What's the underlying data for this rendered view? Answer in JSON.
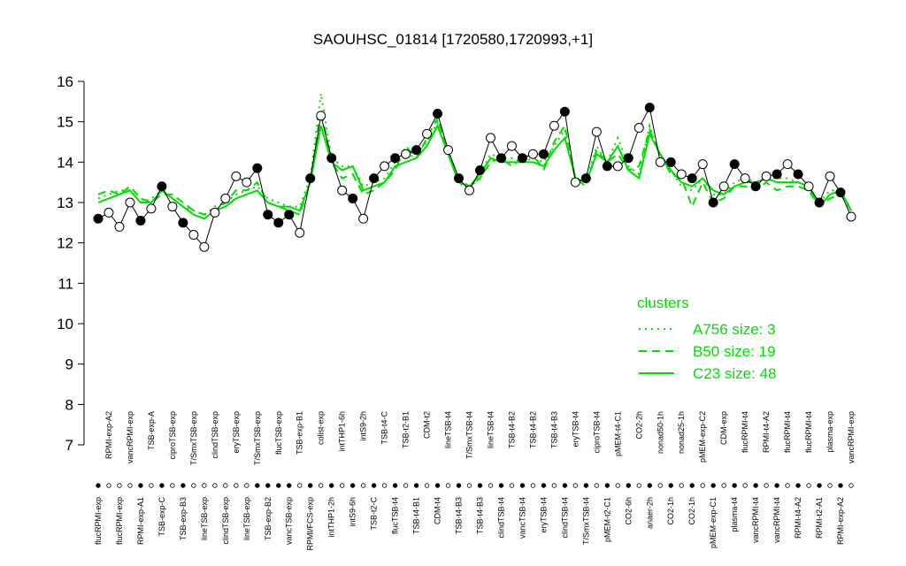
{
  "chart_data": {
    "type": "line",
    "title": "SAOUHSC_01814 [1720580,1720993,+1]",
    "categories": [
      "flucRPMI-exp",
      "RPMI-exp-A2",
      "flucRPMI-exp",
      "vancRPMI-exp",
      "RPMI-exp-A1",
      "TSB-exp-A",
      "TSB-exp-C",
      "ciproTSB-exp",
      "TSB-exp-B3",
      "T/SmxTSB-exp",
      "lineTSB-exp",
      "clindTSB-exp",
      "clindTSB-exp",
      "eryTSB-exp",
      "lineTSB-exp",
      "T/SmxTSB-exp",
      "TSB-exp-B2",
      "flucTSB-exp",
      "vancTSB-exp",
      "TSB-exp-B1",
      "RPMI/FCS-exp",
      "colist-exp",
      "intTHP1-2h",
      "intTHP1-6h",
      "intS9-6h",
      "intS9-2h",
      "TSB-t2-C",
      "TSB-t4-C",
      "flucTSB-t4",
      "TSB-t2-B1",
      "TSB-t4-B1",
      "CDM-t2",
      "CDM-t4",
      "lineTSB-t4",
      "TSB-t4-B3",
      "T/SmxTSB-t4",
      "TSB-t4-B3",
      "lineTSB-t4",
      "clindTSB-t4",
      "TSB-t4-B2",
      "vancTSB-t4",
      "TSB-t4-B2",
      "eryTSB-t4",
      "TSB-t4-B3",
      "clindTSB-t4",
      "eryTSB-t4",
      "T/SmxTSB-t4",
      "ciproTSB-t4",
      "pMEM-t2-C1",
      "pMEM-t4-C1",
      "CO2-6h",
      "CO2-2h",
      "anaer-2h",
      "nonad50-1h",
      "CO2-1h",
      "nonad25-1h",
      "CO2-1h",
      "pMEM-exp-C2",
      "pMEM-exp-C1",
      "CDM-exp",
      "plasma-t4",
      "flucRPMI-t4",
      "vancRPMI-t4",
      "RPMI-t4-A2",
      "vancRPMI-t4",
      "flucRPMI-t4",
      "RPMI-t4-A2",
      "flucRPMI-t4",
      "RPMI-t2-A1",
      "plasma-exp",
      "RPMI-exp-A2",
      "vancRPMI-exp"
    ],
    "values": [
      12.6,
      12.75,
      12.4,
      13.0,
      12.55,
      12.85,
      13.4,
      12.9,
      12.5,
      12.2,
      11.9,
      12.75,
      13.1,
      13.65,
      13.5,
      13.85,
      12.7,
      12.5,
      12.7,
      12.25,
      13.6,
      15.15,
      14.1,
      13.3,
      13.1,
      12.6,
      13.6,
      13.9,
      14.1,
      14.2,
      14.3,
      14.7,
      15.2,
      14.3,
      13.6,
      13.3,
      13.8,
      14.6,
      14.1,
      14.4,
      14.1,
      14.2,
      14.2,
      14.9,
      15.25,
      13.5,
      13.6,
      14.75,
      13.9,
      13.9,
      14.1,
      14.85,
      15.35,
      14.0,
      14.0,
      13.7,
      13.6,
      13.95,
      13.0,
      13.4,
      13.95,
      13.6,
      13.4,
      13.65,
      13.7,
      13.95,
      13.7,
      13.4,
      13.0,
      13.65,
      13.25,
      12.65
    ],
    "point_colors": [
      "black",
      "white",
      "white",
      "white",
      "black",
      "white",
      "black",
      "white",
      "black",
      "white",
      "white",
      "white",
      "white",
      "white",
      "white",
      "black",
      "black",
      "black",
      "black",
      "white",
      "black",
      "white",
      "black",
      "white",
      "black",
      "white",
      "black",
      "white",
      "black",
      "white",
      "black",
      "white",
      "black",
      "white",
      "black",
      "white",
      "black",
      "white",
      "black",
      "white",
      "black",
      "white",
      "black",
      "white",
      "black",
      "white",
      "black",
      "white",
      "black",
      "white",
      "black",
      "white",
      "black",
      "white",
      "black",
      "white",
      "black",
      "white",
      "black",
      "white",
      "black",
      "white",
      "black",
      "white",
      "black",
      "white",
      "black",
      "white",
      "black",
      "white",
      "black",
      "white"
    ],
    "legend_title": "clusters",
    "series": [
      {
        "name": "A756 size: 3",
        "color": "#00dd00",
        "dash": "dotted",
        "values": [
          13.1,
          13.2,
          13.3,
          13.3,
          13.0,
          13.1,
          13.3,
          13.1,
          12.9,
          12.8,
          12.7,
          12.9,
          13.0,
          13.2,
          13.3,
          13.4,
          13.1,
          13.0,
          12.9,
          12.9,
          13.6,
          15.7,
          14.1,
          13.9,
          13.9,
          13.4,
          13.5,
          13.6,
          14.0,
          14.1,
          14.2,
          14.5,
          15.0,
          14.2,
          13.5,
          13.3,
          13.7,
          14.2,
          14.1,
          14.1,
          14.0,
          14.1,
          14.0,
          14.4,
          14.8,
          13.6,
          13.5,
          14.4,
          14.0,
          14.6,
          13.9,
          13.7,
          14.9,
          14.1,
          13.8,
          13.4,
          13.3,
          13.6,
          13.2,
          13.2,
          13.5,
          13.6,
          13.5,
          13.6,
          13.6,
          13.6,
          13.5,
          13.4,
          13.0,
          13.3,
          13.3,
          12.8
        ]
      },
      {
        "name": "B50 size: 19",
        "color": "#00dd00",
        "dash": "dashed",
        "values": [
          13.2,
          13.3,
          13.2,
          13.4,
          13.1,
          13.0,
          13.2,
          13.2,
          13.0,
          12.8,
          12.7,
          12.8,
          13.0,
          13.3,
          13.3,
          13.5,
          13.0,
          12.9,
          12.8,
          12.7,
          13.5,
          15.3,
          14.0,
          13.6,
          13.7,
          13.2,
          13.3,
          13.5,
          13.8,
          14.4,
          14.1,
          14.6,
          15.1,
          14.2,
          13.6,
          13.4,
          13.6,
          14.0,
          14.1,
          13.9,
          14.1,
          14.2,
          13.8,
          14.5,
          14.9,
          13.6,
          13.4,
          14.3,
          14.0,
          14.2,
          13.8,
          13.9,
          14.8,
          14.2,
          13.7,
          13.6,
          12.9,
          13.5,
          13.0,
          13.1,
          13.4,
          13.4,
          13.3,
          13.5,
          13.3,
          13.4,
          13.4,
          13.3,
          12.9,
          13.1,
          13.2,
          12.8
        ]
      },
      {
        "name": "C23 size: 48",
        "color": "#00dd00",
        "dash": "solid",
        "values": [
          13.0,
          13.1,
          13.2,
          13.3,
          13.0,
          13.0,
          13.3,
          13.1,
          12.9,
          12.7,
          12.6,
          12.8,
          12.9,
          13.1,
          13.2,
          13.3,
          13.0,
          12.9,
          12.9,
          12.8,
          13.5,
          14.9,
          14.0,
          13.8,
          13.9,
          13.3,
          13.4,
          13.5,
          13.9,
          14.0,
          14.1,
          14.4,
          14.9,
          14.2,
          13.5,
          13.4,
          13.7,
          14.1,
          14.0,
          14.0,
          14.0,
          14.0,
          13.9,
          14.3,
          14.6,
          13.6,
          13.5,
          14.2,
          14.0,
          14.4,
          13.8,
          13.6,
          14.7,
          14.2,
          13.8,
          13.5,
          13.4,
          13.6,
          13.3,
          13.2,
          13.4,
          13.5,
          13.5,
          13.6,
          13.5,
          13.5,
          13.5,
          13.4,
          12.9,
          13.2,
          13.3,
          12.8
        ]
      }
    ],
    "ylim": [
      7,
      16
    ],
    "yticks": [
      7,
      8,
      9,
      10,
      11,
      12,
      13,
      14,
      15,
      16
    ]
  }
}
